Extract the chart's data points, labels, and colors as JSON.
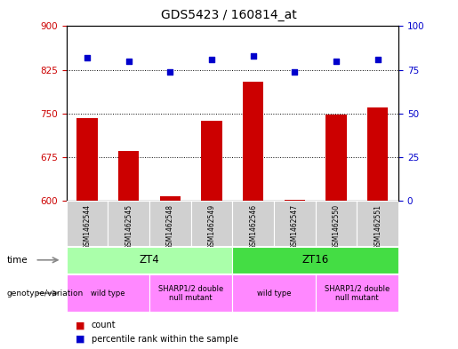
{
  "title": "GDS5423 / 160814_at",
  "samples": [
    "GSM1462544",
    "GSM1462545",
    "GSM1462548",
    "GSM1462549",
    "GSM1462546",
    "GSM1462547",
    "GSM1462550",
    "GSM1462551"
  ],
  "counts": [
    742,
    685,
    607,
    737,
    805,
    602,
    748,
    760
  ],
  "percentiles": [
    82,
    80,
    74,
    81,
    83,
    74,
    80,
    81
  ],
  "ylim_left": [
    600,
    900
  ],
  "ylim_right": [
    0,
    100
  ],
  "yticks_left": [
    600,
    675,
    750,
    825,
    900
  ],
  "yticks_right": [
    0,
    25,
    50,
    75,
    100
  ],
  "bar_color": "#cc0000",
  "dot_color": "#0000cc",
  "bar_bottom": 600,
  "time_groups": [
    {
      "label": "ZT4",
      "start": 0,
      "end": 4,
      "color": "#aaffaa"
    },
    {
      "label": "ZT16",
      "start": 4,
      "end": 8,
      "color": "#44dd44"
    }
  ],
  "genotype_groups": [
    {
      "label": "wild type",
      "start": 0,
      "end": 2,
      "color": "#ff88ff"
    },
    {
      "label": "SHARP1/2 double\nnull mutant",
      "start": 2,
      "end": 4,
      "color": "#ff88ff"
    },
    {
      "label": "wild type",
      "start": 4,
      "end": 6,
      "color": "#ff88ff"
    },
    {
      "label": "SHARP1/2 double\nnull mutant",
      "start": 6,
      "end": 8,
      "color": "#ff88ff"
    }
  ],
  "legend_count_color": "#cc0000",
  "legend_dot_color": "#0000cc",
  "sample_bg": "#d0d0d0",
  "plot_bg": "#ffffff",
  "fig_bg": "#ffffff"
}
